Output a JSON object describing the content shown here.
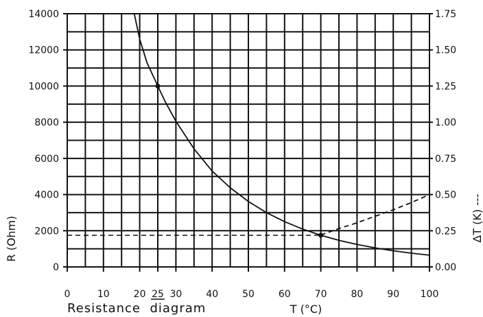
{
  "chart_data": {
    "type": "line",
    "caption": "Resistance  diagram",
    "xlabel": "T (°C)",
    "ylabel_left": "R (Ohm)",
    "ylabel_right": "ΔT (K) ---",
    "xlim": [
      0,
      100
    ],
    "ylim_left": [
      0,
      14000
    ],
    "ylim_right": [
      0,
      1.75
    ],
    "grid": true,
    "x_ticks": [
      "0",
      "10",
      "20",
      "25",
      "30",
      "40",
      "50",
      "60",
      "70",
      "80",
      "90",
      "100"
    ],
    "x_tick_values": [
      0,
      10,
      20,
      25,
      30,
      40,
      50,
      60,
      70,
      80,
      90,
      100
    ],
    "y_left_ticks": [
      "0",
      "2000",
      "4000",
      "6000",
      "8000",
      "10000",
      "12000",
      "14000"
    ],
    "y_left_tick_values": [
      0,
      2000,
      4000,
      6000,
      8000,
      10000,
      12000,
      14000
    ],
    "y_right_ticks": [
      "0.00",
      "0.25",
      "0.50",
      "0.75",
      "1.00",
      "1.25",
      "1.50",
      "1.75"
    ],
    "y_right_tick_values": [
      0,
      0.25,
      0.5,
      0.75,
      1.0,
      1.25,
      1.5,
      1.75
    ],
    "series": [
      {
        "axis": "left",
        "style": "solid",
        "x": [
          18.5,
          20,
          22,
          25,
          27,
          30,
          35,
          40,
          45,
          50,
          55,
          60,
          65,
          70,
          75,
          80,
          85,
          90,
          95,
          100
        ],
        "y": [
          14000,
          12600,
          11300,
          10000,
          9150,
          8050,
          6530,
          5300,
          4380,
          3620,
          3000,
          2500,
          2090,
          1750,
          1470,
          1240,
          1050,
          890,
          760,
          650
        ]
      },
      {
        "axis": "right",
        "style": "dashed",
        "x": [
          70,
          75,
          80,
          85,
          90,
          95,
          100
        ],
        "y": [
          0.22,
          0.265,
          0.305,
          0.35,
          0.395,
          0.445,
          0.5
        ]
      }
    ],
    "annotations": [
      {
        "type": "point",
        "x": 25,
        "y": 10000,
        "axis": "left"
      },
      {
        "type": "point",
        "x": 70,
        "y": 1750,
        "axis": "left"
      },
      {
        "type": "hline",
        "x0": 0,
        "x1": 70,
        "y": 1750,
        "axis": "left",
        "style": "dashed"
      }
    ]
  }
}
